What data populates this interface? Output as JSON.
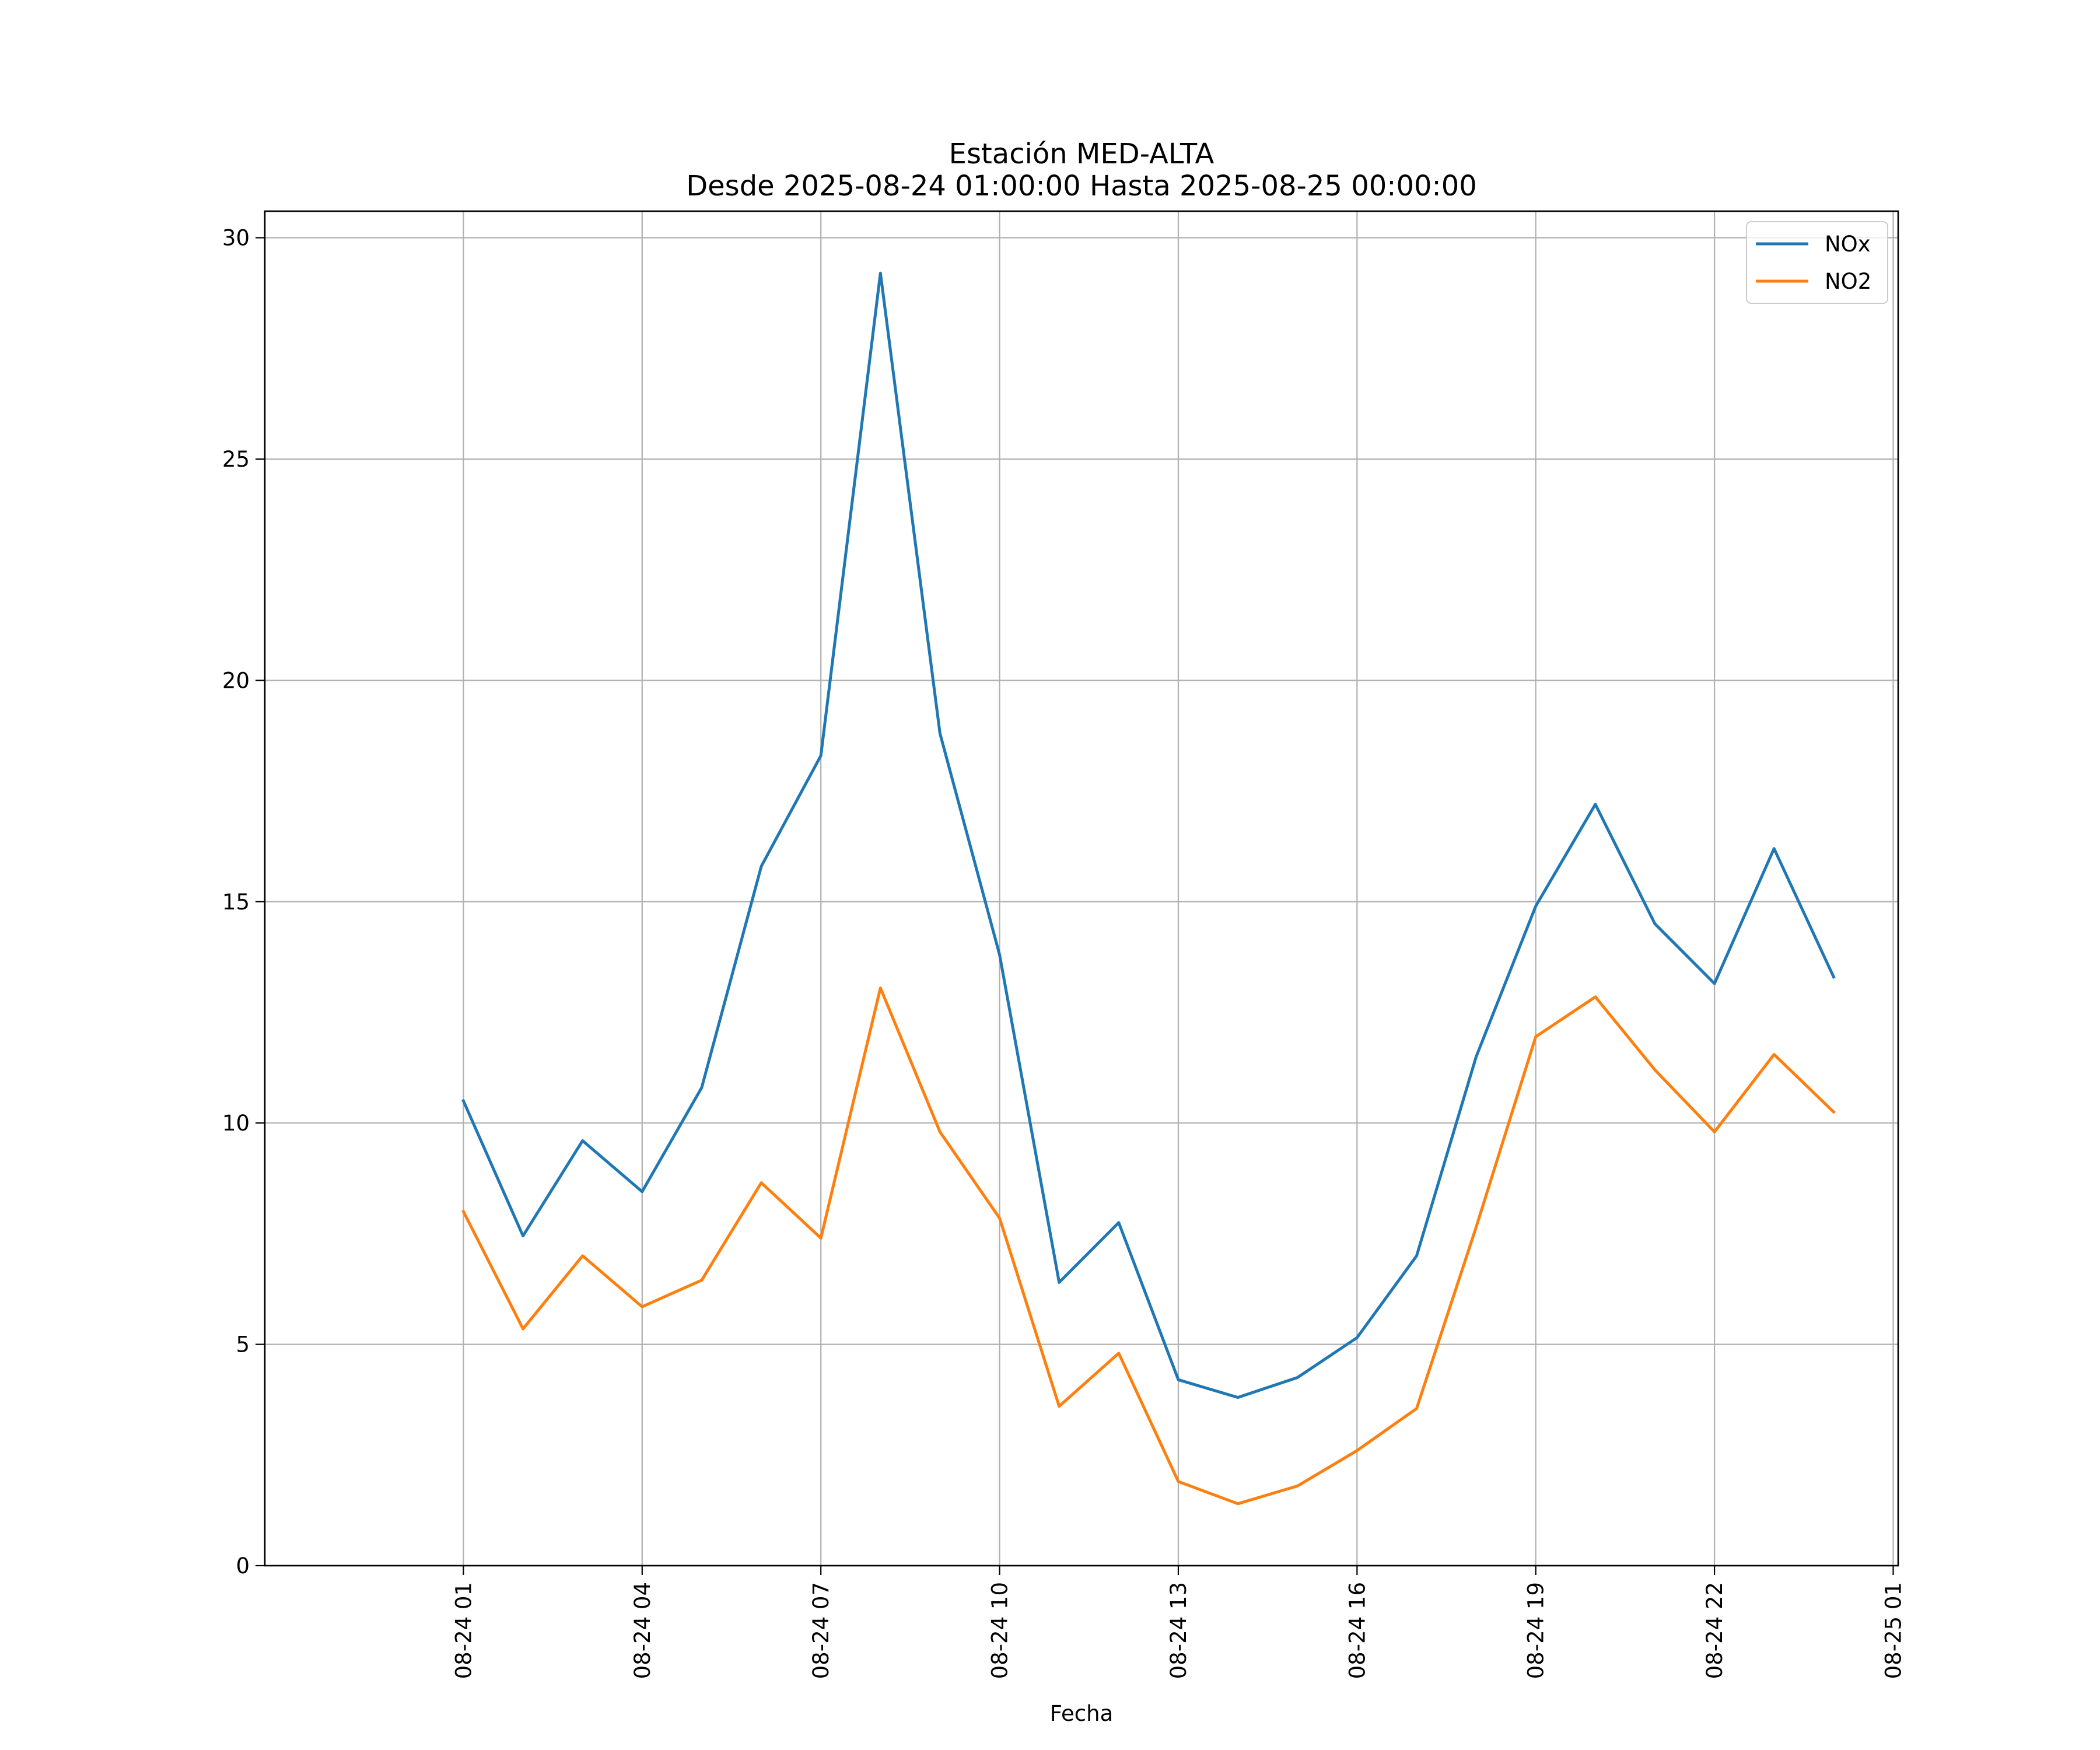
{
  "chart_data": {
    "type": "line",
    "title": "Estación MED-ALTA",
    "subtitle": "Desde 2025-08-24 01:00:00 Hasta 2025-08-25 00:00:00",
    "xlabel": "Fecha",
    "ylabel": "",
    "x": [
      "2025-08-24 01:00",
      "2025-08-24 02:00",
      "2025-08-24 03:00",
      "2025-08-24 04:00",
      "2025-08-24 05:00",
      "2025-08-24 06:00",
      "2025-08-24 07:00",
      "2025-08-24 08:00",
      "2025-08-24 09:00",
      "2025-08-24 10:00",
      "2025-08-24 11:00",
      "2025-08-24 12:00",
      "2025-08-24 13:00",
      "2025-08-24 14:00",
      "2025-08-24 15:00",
      "2025-08-24 16:00",
      "2025-08-24 17:00",
      "2025-08-24 18:00",
      "2025-08-24 19:00",
      "2025-08-24 20:00",
      "2025-08-24 21:00",
      "2025-08-24 22:00",
      "2025-08-24 23:00",
      "2025-08-25 00:00"
    ],
    "xlim": [
      "2025-08-23 21:40",
      "2025-08-25 01:05"
    ],
    "xticks": [
      {
        "x": "2025-08-24 01:00",
        "label": "08-24 01"
      },
      {
        "x": "2025-08-24 04:00",
        "label": "08-24 04"
      },
      {
        "x": "2025-08-24 07:00",
        "label": "08-24 07"
      },
      {
        "x": "2025-08-24 10:00",
        "label": "08-24 10"
      },
      {
        "x": "2025-08-24 13:00",
        "label": "08-24 13"
      },
      {
        "x": "2025-08-24 16:00",
        "label": "08-24 16"
      },
      {
        "x": "2025-08-24 19:00",
        "label": "08-24 19"
      },
      {
        "x": "2025-08-24 22:00",
        "label": "08-24 22"
      },
      {
        "x": "2025-08-25 01:00",
        "label": "08-25 01"
      }
    ],
    "ylim": [
      0,
      30.6
    ],
    "yticks": [
      {
        "value": 0,
        "label": "0"
      },
      {
        "value": 5,
        "label": "5"
      },
      {
        "value": 10,
        "label": "10"
      },
      {
        "value": 15,
        "label": "15"
      },
      {
        "value": 20,
        "label": "20"
      },
      {
        "value": 25,
        "label": "25"
      },
      {
        "value": 30,
        "label": "30"
      }
    ],
    "grid": true,
    "legend_position": "top-right",
    "series": [
      {
        "name": "NOx",
        "color": "#1f77b4",
        "values": [
          10.5,
          7.45,
          9.6,
          8.45,
          10.8,
          15.8,
          18.3,
          29.2,
          18.8,
          13.8,
          6.4,
          7.75,
          4.2,
          3.8,
          4.25,
          5.15,
          7.0,
          11.5,
          14.9,
          17.2,
          14.5,
          13.15,
          16.2,
          13.3
        ]
      },
      {
        "name": "NO2",
        "color": "#ff7f0e",
        "values": [
          8.0,
          5.35,
          7.0,
          5.85,
          6.45,
          8.65,
          7.4,
          13.05,
          9.8,
          7.85,
          3.6,
          4.8,
          1.9,
          1.4,
          1.8,
          2.6,
          3.55,
          7.65,
          11.95,
          12.85,
          11.2,
          9.8,
          11.55,
          10.25
        ]
      }
    ]
  }
}
